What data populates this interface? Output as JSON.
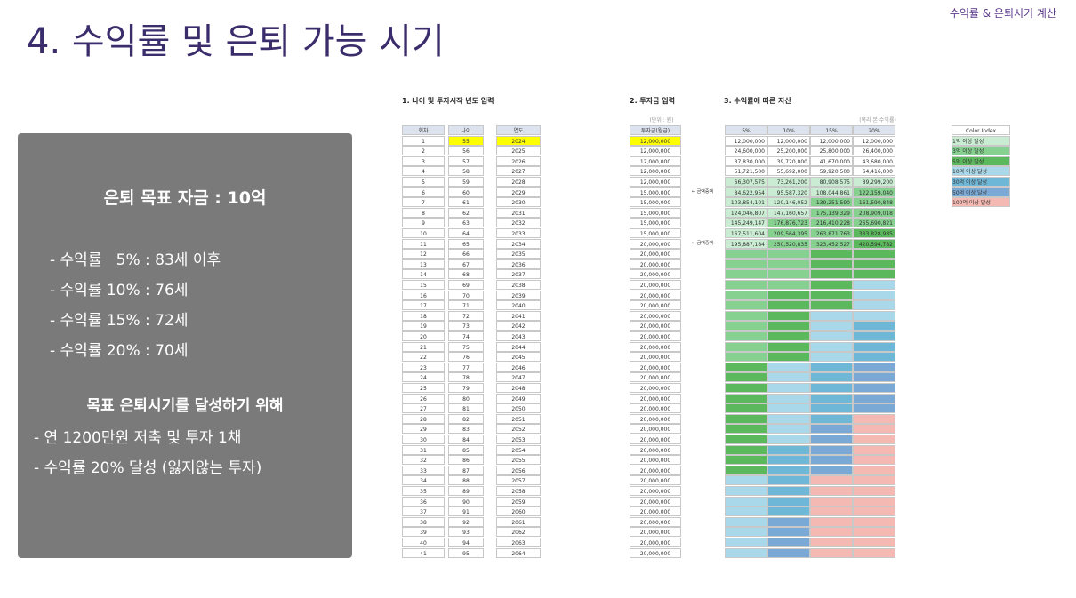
{
  "header": {
    "title": "4. 수익률 및 은퇴 가능 시기",
    "tag": "수익률 & 은퇴시기 계산"
  },
  "panel": {
    "goal": "은퇴 목표 자금 : 10억",
    "items": [
      "- 수익률   5% : 83세 이후",
      "- 수익률 10% : 76세",
      "- 수익률 15% : 72세",
      "- 수익률 20% : 70세"
    ],
    "subtitle": "목표 은퇴시기를 달성하기 위해",
    "plans": [
      "- 연 1200만원 저축 및 투자 1채",
      "- 수익률 20% 달성 (잃지않는 투자)"
    ]
  },
  "sheet": {
    "section1": "1. 나이 및 투자시작 년도 입력",
    "section2": "2. 투자금 입력",
    "section3": "3. 수익률에 따른 자산",
    "unit": "(단위 : 원)",
    "note": "(복리 본 수익률)",
    "columns": [
      "회차",
      "나이",
      "연도",
      "투자금(월급)",
      "5%",
      "10%",
      "15%",
      "20%"
    ],
    "annotations": [
      {
        "row": 5,
        "text": "← 금액증액"
      },
      {
        "row": 10,
        "text": "← 금액증액"
      }
    ],
    "rows": [
      [
        "1",
        "55",
        "2024",
        "12,000,000"
      ],
      [
        "2",
        "56",
        "2025",
        "12,000,000"
      ],
      [
        "3",
        "57",
        "2026",
        "12,000,000"
      ],
      [
        "4",
        "58",
        "2027",
        "12,000,000"
      ],
      [
        "5",
        "59",
        "2028",
        "12,000,000"
      ],
      [
        "6",
        "60",
        "2029",
        "15,000,000"
      ],
      [
        "7",
        "61",
        "2030",
        "15,000,000"
      ],
      [
        "8",
        "62",
        "2031",
        "15,000,000"
      ],
      [
        "9",
        "63",
        "2032",
        "15,000,000"
      ],
      [
        "10",
        "64",
        "2033",
        "15,000,000"
      ],
      [
        "11",
        "65",
        "2034",
        "20,000,000"
      ],
      [
        "12",
        "66",
        "2035",
        "20,000,000"
      ],
      [
        "13",
        "67",
        "2036",
        "20,000,000"
      ],
      [
        "14",
        "68",
        "2037",
        "20,000,000"
      ],
      [
        "15",
        "69",
        "2038",
        "20,000,000"
      ],
      [
        "16",
        "70",
        "2039",
        "20,000,000"
      ],
      [
        "17",
        "71",
        "2040",
        "20,000,000"
      ],
      [
        "18",
        "72",
        "2041",
        "20,000,000"
      ],
      [
        "19",
        "73",
        "2042",
        "20,000,000"
      ],
      [
        "20",
        "74",
        "2043",
        "20,000,000"
      ],
      [
        "21",
        "75",
        "2044",
        "20,000,000"
      ],
      [
        "22",
        "76",
        "2045",
        "20,000,000"
      ],
      [
        "23",
        "77",
        "2046",
        "20,000,000"
      ],
      [
        "24",
        "78",
        "2047",
        "20,000,000"
      ],
      [
        "25",
        "79",
        "2048",
        "20,000,000"
      ],
      [
        "26",
        "80",
        "2049",
        "20,000,000"
      ],
      [
        "27",
        "81",
        "2050",
        "20,000,000"
      ],
      [
        "28",
        "82",
        "2051",
        "20,000,000"
      ],
      [
        "29",
        "83",
        "2052",
        "20,000,000"
      ],
      [
        "30",
        "84",
        "2053",
        "20,000,000"
      ],
      [
        "31",
        "85",
        "2054",
        "20,000,000"
      ],
      [
        "32",
        "86",
        "2055",
        "20,000,000"
      ],
      [
        "33",
        "87",
        "2056",
        "20,000,000"
      ],
      [
        "34",
        "88",
        "2057",
        "20,000,000"
      ],
      [
        "35",
        "89",
        "2058",
        "20,000,000"
      ],
      [
        "36",
        "90",
        "2059",
        "20,000,000"
      ],
      [
        "37",
        "91",
        "2060",
        "20,000,000"
      ],
      [
        "38",
        "92",
        "2061",
        "20,000,000"
      ],
      [
        "39",
        "93",
        "2062",
        "20,000,000"
      ],
      [
        "40",
        "94",
        "2063",
        "20,000,000"
      ],
      [
        "41",
        "95",
        "2064",
        "20,000,000"
      ]
    ],
    "returns": [
      [
        "12,000,000",
        "12,000,000",
        "12,000,000",
        "12,000,000"
      ],
      [
        "24,600,000",
        "25,200,000",
        "25,800,000",
        "26,400,000"
      ],
      [
        "37,830,000",
        "39,720,000",
        "41,670,000",
        "43,680,000"
      ],
      [
        "51,721,500",
        "55,692,000",
        "59,920,500",
        "64,416,000"
      ],
      [
        "66,307,575",
        "73,261,200",
        "80,908,575",
        "89,299,200"
      ],
      [
        "84,622,954",
        "95,587,320",
        "108,044,861",
        "122,159,040"
      ],
      [
        "103,854,101",
        "120,146,052",
        "139,251,590",
        "161,590,848"
      ],
      [
        "124,046,807",
        "147,160,657",
        "175,139,329",
        "208,909,018"
      ],
      [
        "145,249,147",
        "176,876,723",
        "216,410,228",
        "265,690,821"
      ],
      [
        "167,511,604",
        "209,564,395",
        "263,871,763",
        "333,828,985"
      ],
      [
        "195,887,184",
        "250,520,835",
        "323,452,527",
        "420,594,782"
      ]
    ],
    "legend": {
      "title": "Color Index",
      "items": [
        "1억 이상 달성",
        "3억 이상 달성",
        "5억 이상 달성",
        "10억 이상 달성",
        "30억 이상 달성",
        "50억 이상 달성",
        "100억 이상 달성"
      ]
    }
  }
}
